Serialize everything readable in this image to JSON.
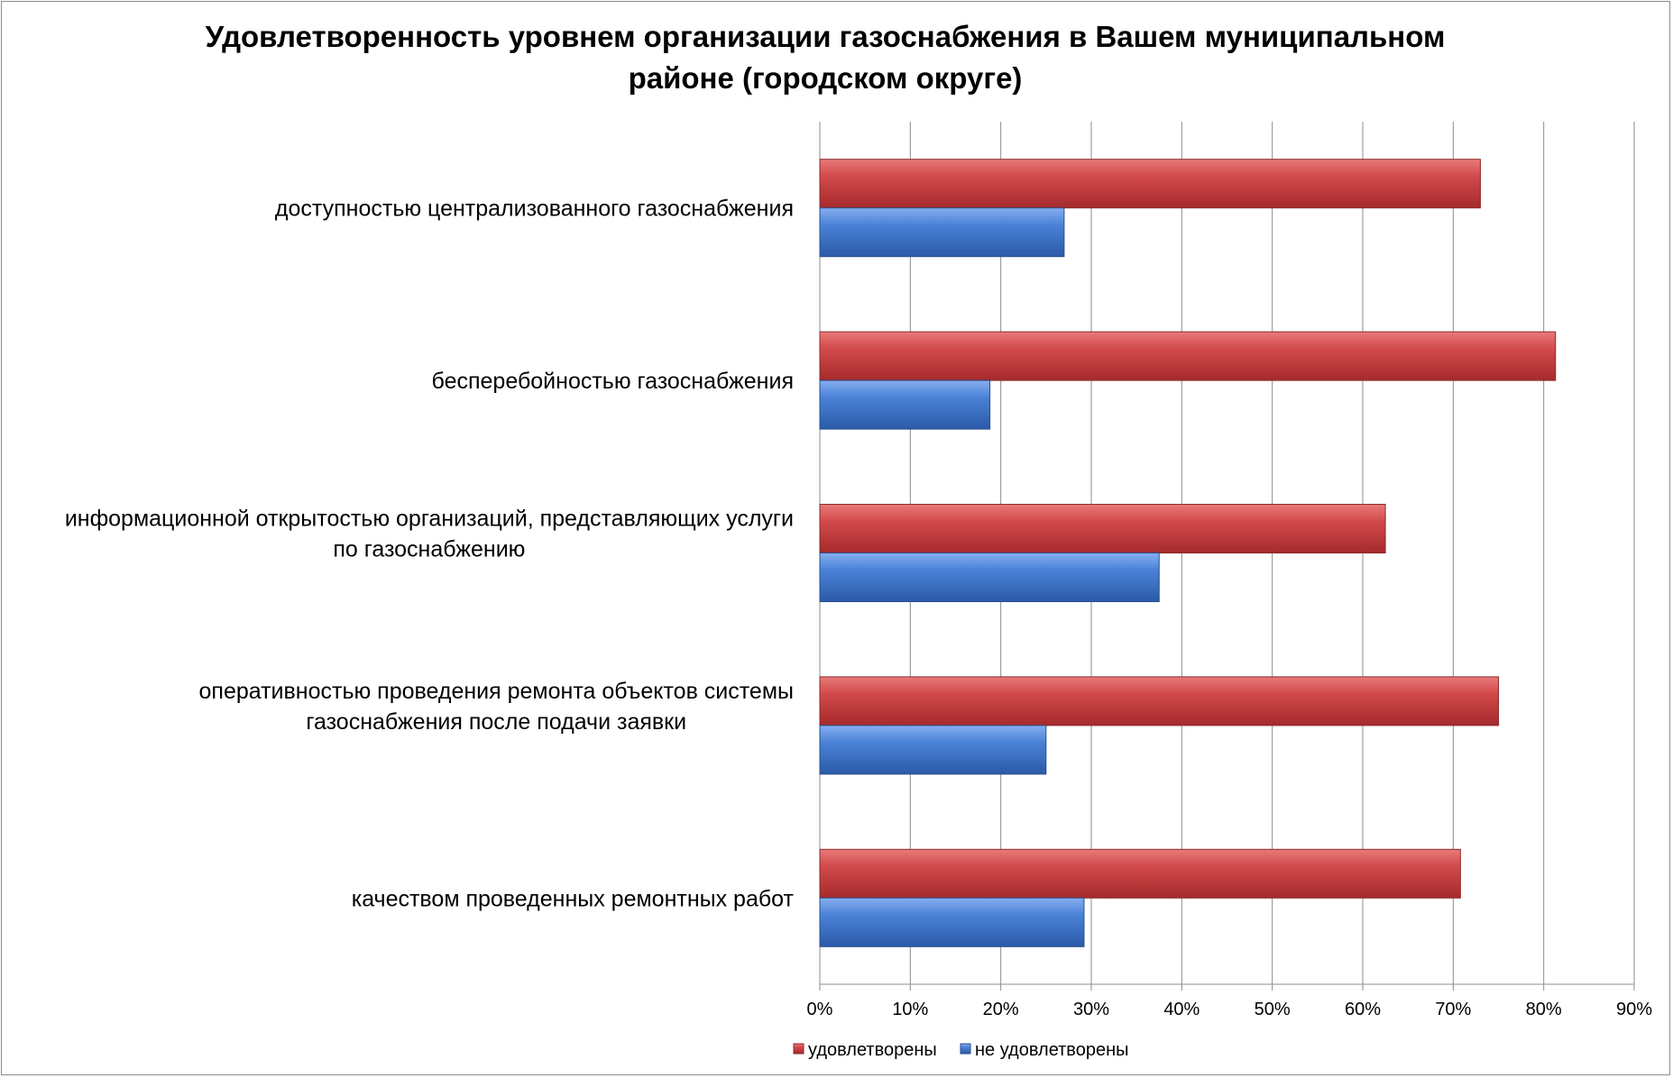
{
  "chart_data": {
    "type": "bar",
    "orientation": "horizontal",
    "title_lines": [
      "Удовлетворенность уровнем организации газоснабжения в Вашем муниципальном",
      "районе (городском округе)"
    ],
    "categories": [
      [
        "доступностью централизованного газоснабжения"
      ],
      [
        "бесперебойностью  газоснабжения"
      ],
      [
        "информационной открытостью организаций, представляющих услуги",
        "по газоснабжению"
      ],
      [
        "оперативностью проведения ремонта объектов системы",
        "газоснабжения после подачи заявки"
      ],
      [
        "качеством проведенных ремонтных работ"
      ]
    ],
    "series": [
      {
        "name": "удовлетворены",
        "color": "#c0393b",
        "values": [
          73,
          81.3,
          62.5,
          75,
          70.8
        ]
      },
      {
        "name": "не удовлетворены",
        "color": "#3f74c9",
        "values": [
          27,
          18.8,
          37.5,
          25,
          29.2
        ]
      }
    ],
    "xlim": [
      0,
      90
    ],
    "xticks": [
      "0%",
      "10%",
      "20%",
      "30%",
      "40%",
      "50%",
      "60%",
      "70%",
      "80%",
      "90%"
    ],
    "grid": true,
    "legend_position": "bottom"
  }
}
